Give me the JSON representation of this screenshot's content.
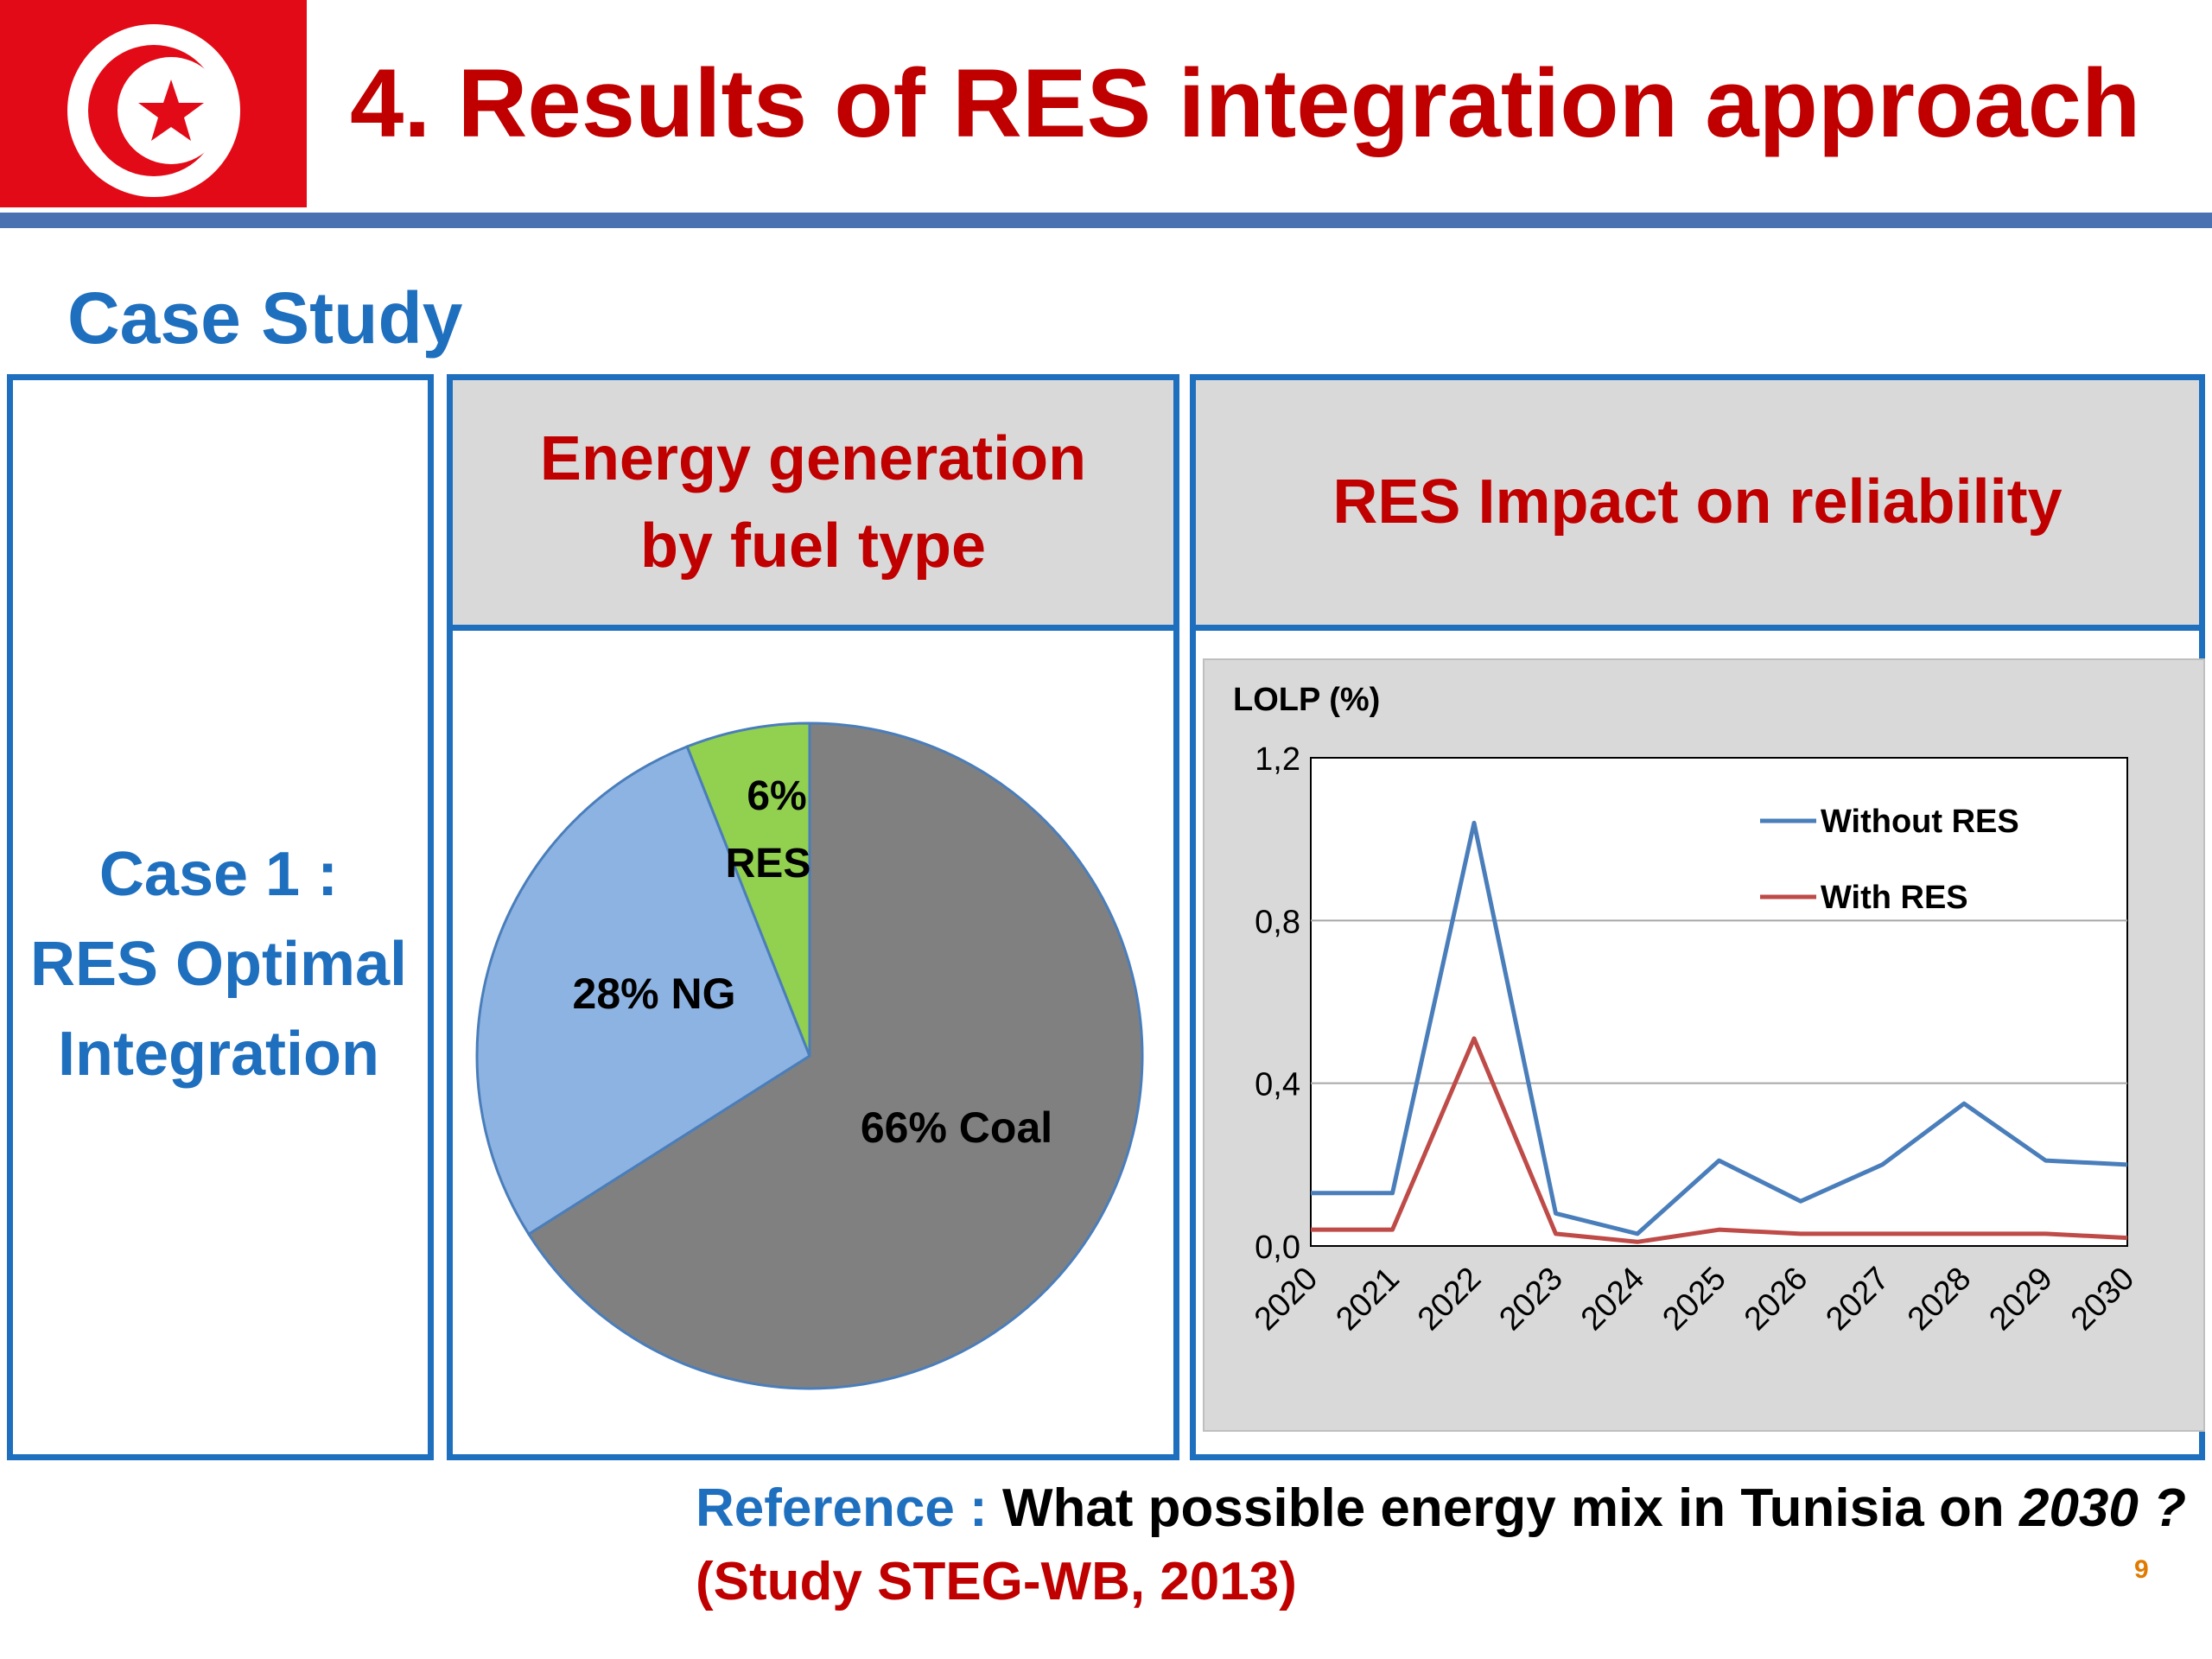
{
  "slide": {
    "title": "4. Results of RES integration approach",
    "subtitle": "Case Study",
    "page_number": "9",
    "colors": {
      "title": "#c00000",
      "accent_blue": "#1f6fbf",
      "rule": "#4a72b2",
      "flag_red": "#e30a17"
    }
  },
  "case": {
    "line1": "Case 1 :",
    "line2": "RES Optimal",
    "line3": "Integration"
  },
  "panels": {
    "energy_head_line1": "Energy generation",
    "energy_head_line2": "by fuel type",
    "reliability_head": "RES Impact on reliability"
  },
  "reference": {
    "label": "Reference : ",
    "text": "What possible energy mix in Tunisia on ",
    "year": "2030 ?",
    "source": "(Study STEG-WB, 2013)"
  },
  "chart_data": [
    {
      "type": "pie",
      "slices": [
        {
          "label": "66% Coal",
          "value": 66,
          "color": "#808080"
        },
        {
          "label": "28% NG",
          "value": 28,
          "color": "#8db3e2"
        },
        {
          "label": "6% RES",
          "label_line1": "6%",
          "label_line2": "RES",
          "value": 6,
          "color": "#92d050"
        }
      ]
    },
    {
      "type": "line",
      "ylabel": "LOLP (%)",
      "ylim": [
        0,
        1.2
      ],
      "yticks": [
        "0,0",
        "0,4",
        "0,8",
        "1,2"
      ],
      "grid": true,
      "legend_position": "top-right",
      "x": [
        "2020",
        "2021",
        "2022",
        "2023",
        "2024",
        "2025",
        "2026",
        "2027",
        "2028",
        "2029",
        "2030"
      ],
      "series": [
        {
          "name": "Without RES",
          "color": "#4a7ebb",
          "values": [
            0.13,
            0.13,
            1.04,
            0.08,
            0.03,
            0.21,
            0.11,
            0.2,
            0.35,
            0.21,
            0.2
          ]
        },
        {
          "name": "With RES",
          "color": "#be4b48",
          "values": [
            0.04,
            0.04,
            0.51,
            0.03,
            0.01,
            0.04,
            0.03,
            0.03,
            0.03,
            0.03,
            0.02
          ]
        }
      ]
    }
  ]
}
